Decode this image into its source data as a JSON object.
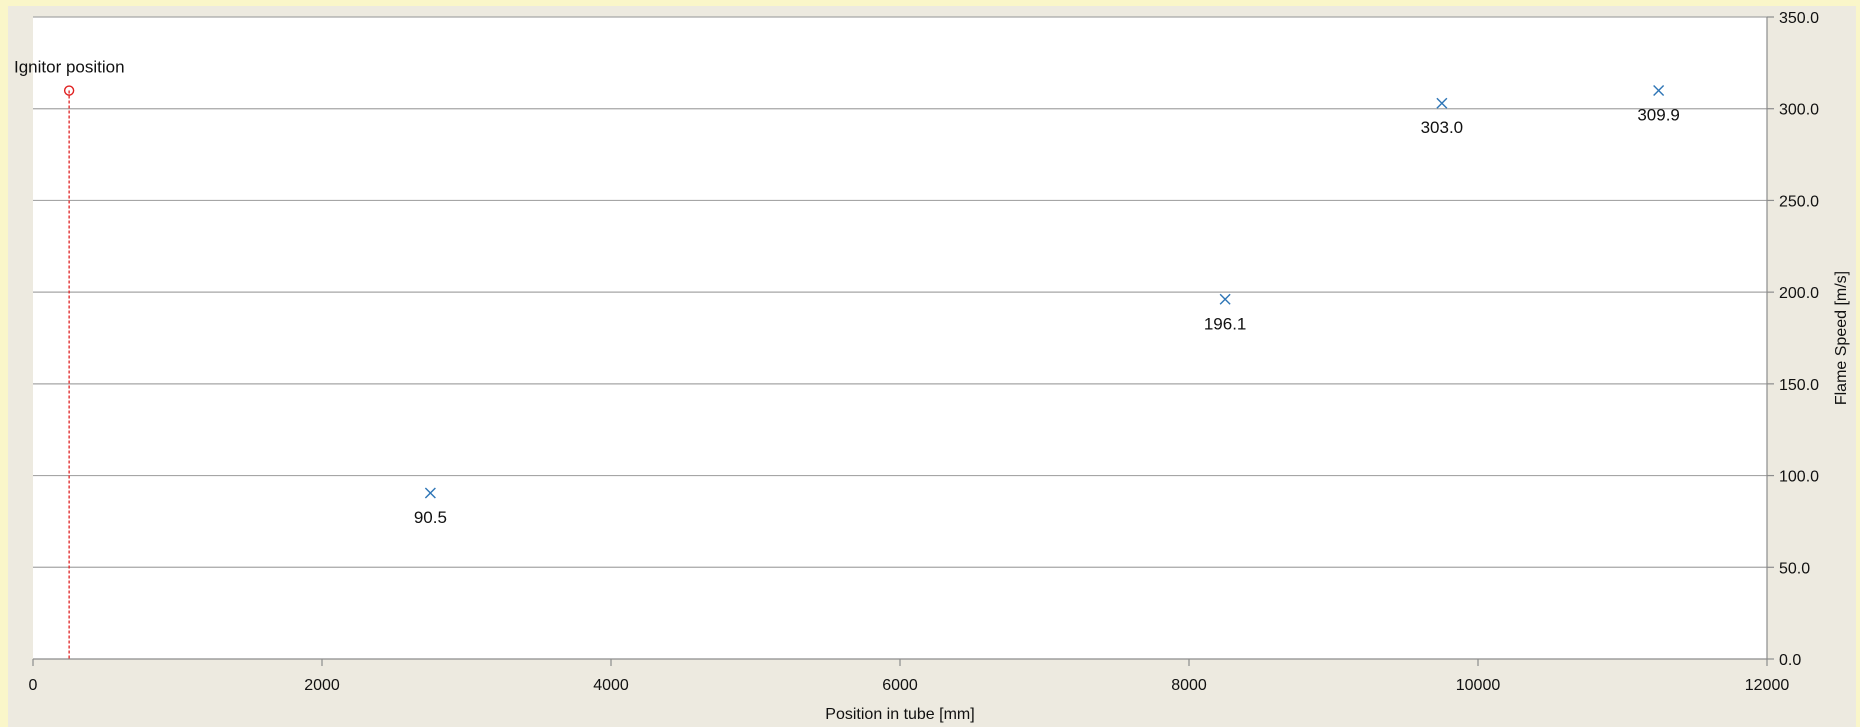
{
  "chart_data": {
    "type": "scatter",
    "title": "",
    "xlabel": "Position in tube [mm]",
    "ylabel": "Flame Speed [m/s]",
    "xlim": [
      0,
      12000
    ],
    "ylim": [
      0,
      350
    ],
    "x_ticks": [
      0,
      2000,
      4000,
      6000,
      8000,
      10000,
      12000
    ],
    "x_tick_labels": [
      "0",
      "2000",
      "4000",
      "6000",
      "8000",
      "10000",
      "12000"
    ],
    "y_ticks": [
      0,
      50,
      100,
      150,
      200,
      250,
      300,
      350
    ],
    "y_tick_labels": [
      "0.0",
      "50.0",
      "100.0",
      "150.0",
      "200.0",
      "250.0",
      "300.0",
      "350.0"
    ],
    "y_axis_side": "right",
    "grid": "horizontal",
    "legend": "none",
    "series": [
      {
        "marker": "x",
        "color": "#2e75b6",
        "points": [
          {
            "x": 2750,
            "y": 90.5,
            "label": "90.5"
          },
          {
            "x": 8250,
            "y": 196.1,
            "label": "196.1"
          },
          {
            "x": 9750,
            "y": 303.0,
            "label": "303.0"
          },
          {
            "x": 11250,
            "y": 309.9,
            "label": "309.9"
          }
        ]
      }
    ],
    "annotations": [
      {
        "text": "Ignitor position",
        "x": 250,
        "y": 309.9,
        "marker": "circle",
        "color": "#e02020",
        "vertical_dashed_line": true
      }
    ]
  },
  "colors": {
    "page_background": "#faf6c9",
    "outer_panel": "#edeae0",
    "plot_area": "#ffffff",
    "gridline": "#a6a6a6",
    "axis_line": "#8c8c8c",
    "series_marker": "#2e75b6",
    "ignitor": "#e02020"
  }
}
